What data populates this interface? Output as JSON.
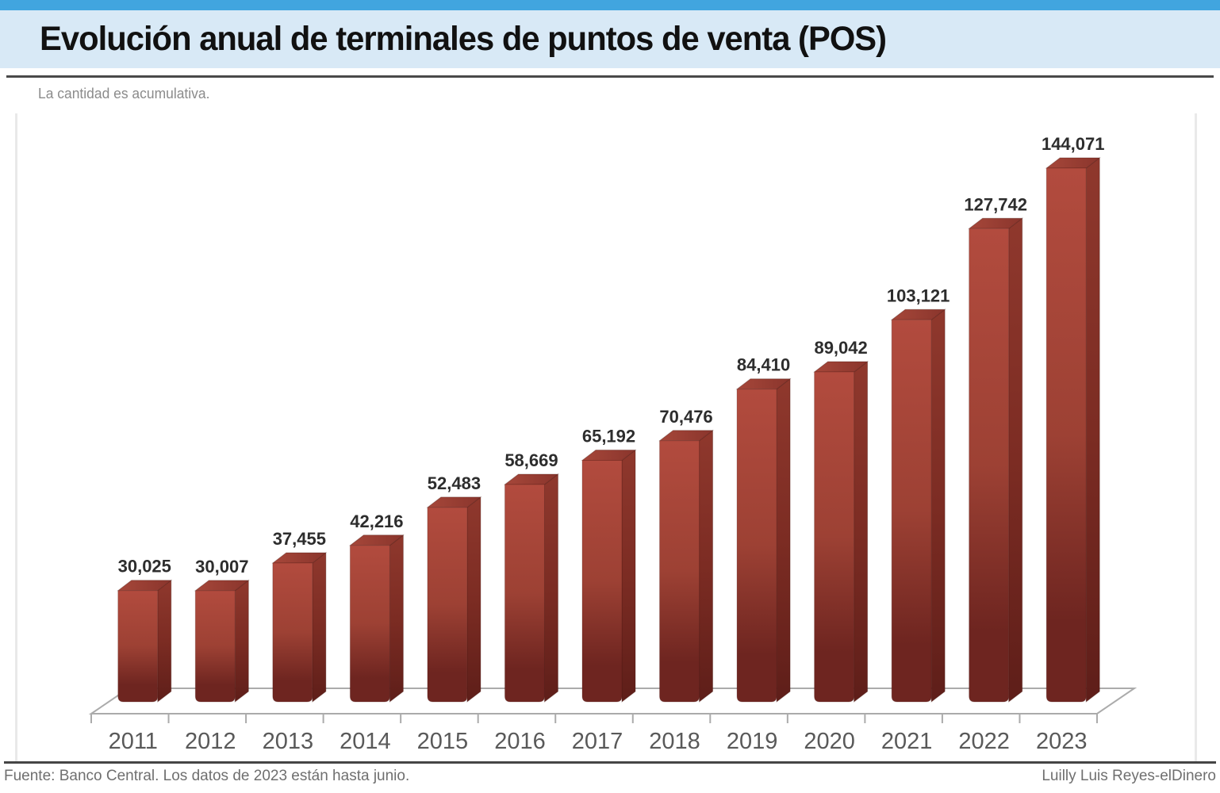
{
  "header": {
    "title": "Evolución anual de terminales de puntos de venta (POS)",
    "subtitle": "La cantidad es acumulativa.",
    "accent_bar_color": "#41a5df",
    "band_color": "#d8e9f6"
  },
  "footer": {
    "source": "Fuente: Banco Central. Los datos de 2023 están hasta junio.",
    "credit": "Luilly Luis Reyes-elDinero"
  },
  "chart_data": {
    "type": "bar",
    "style": "3d-column",
    "title": "Evolución anual de terminales de puntos de venta (POS)",
    "subtitle": "La cantidad es acumulativa.",
    "categories": [
      "2011",
      "2012",
      "2013",
      "2014",
      "2015",
      "2016",
      "2017",
      "2018",
      "2019",
      "2020",
      "2021",
      "2022",
      "2023"
    ],
    "values": [
      30025,
      30007,
      37455,
      42216,
      52483,
      58669,
      65192,
      70476,
      84410,
      89042,
      103121,
      127742,
      144071
    ],
    "data_labels": [
      "30,025",
      "30,007",
      "37,455",
      "42,216",
      "52,483",
      "58,669",
      "65,192",
      "70,476",
      "84,410",
      "89,042",
      "103,121",
      "127,742",
      "144,071"
    ],
    "xlabel": "",
    "ylabel": "",
    "ylim": [
      0,
      150000
    ],
    "grid": false,
    "legend": false,
    "colors": {
      "bar_front_top": "#b24b3e",
      "bar_front_mid": "#9d4134",
      "bar_front_bottom": "#6e2520",
      "bar_side_top": "#8f382d",
      "bar_side_mid": "#7c2c23",
      "bar_side_bottom": "#5e1e19",
      "bar_top_left": "#a6473a",
      "bar_top_right": "#8a352c",
      "axis": "#ababab",
      "value_label": "#2d2d2d",
      "tick_label": "#595959"
    }
  }
}
